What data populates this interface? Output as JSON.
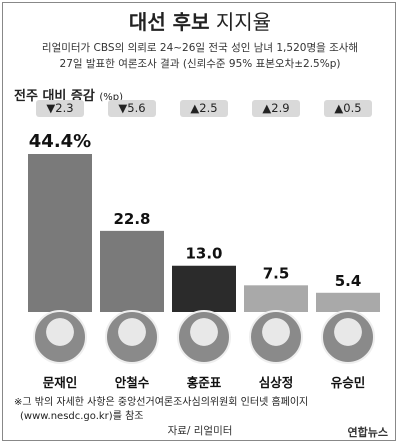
{
  "header": {
    "title_bold": "대선 후보",
    "title_rest": "지지율",
    "note1": "리얼미터가 CBS의 의뢰로 24~26일 전국 성인 남녀 1,520명을 조사해",
    "note2": "27일 발표한 여론조사 결과 (신뢰수준 95% 표본오차±2.5%p)"
  },
  "change_label": "전주 대비 증감",
  "change_unit": "(%p)",
  "chart_data": {
    "type": "bar",
    "categories": [
      "문재인",
      "안철수",
      "홍준표",
      "심상정",
      "유승민"
    ],
    "values": [
      44.4,
      22.8,
      13.0,
      7.5,
      5.4
    ],
    "value_labels": [
      "44.4%",
      "22.8",
      "13.0",
      "7.5",
      "5.4"
    ],
    "change": [
      {
        "dir": "down",
        "text": "▼2.3"
      },
      {
        "dir": "down",
        "text": "▼5.6"
      },
      {
        "dir": "up",
        "text": "▲2.5"
      },
      {
        "dir": "up",
        "text": "▲2.9"
      },
      {
        "dir": "up",
        "text": "▲0.5"
      }
    ],
    "colors": [
      "#7a7a7a",
      "#7a7a7a",
      "#2b2b2b",
      "#a9a9a9",
      "#a9a9a9"
    ]
  },
  "footnote1": "※그 밖의 자세한 사항은 중앙선거여론조사심의위원회 인터넷 홈페이지",
  "footnote2": "(www.nesdc.go.kr)를 참조",
  "source": "자료/ 리얼미터",
  "logo": "연합뉴스"
}
